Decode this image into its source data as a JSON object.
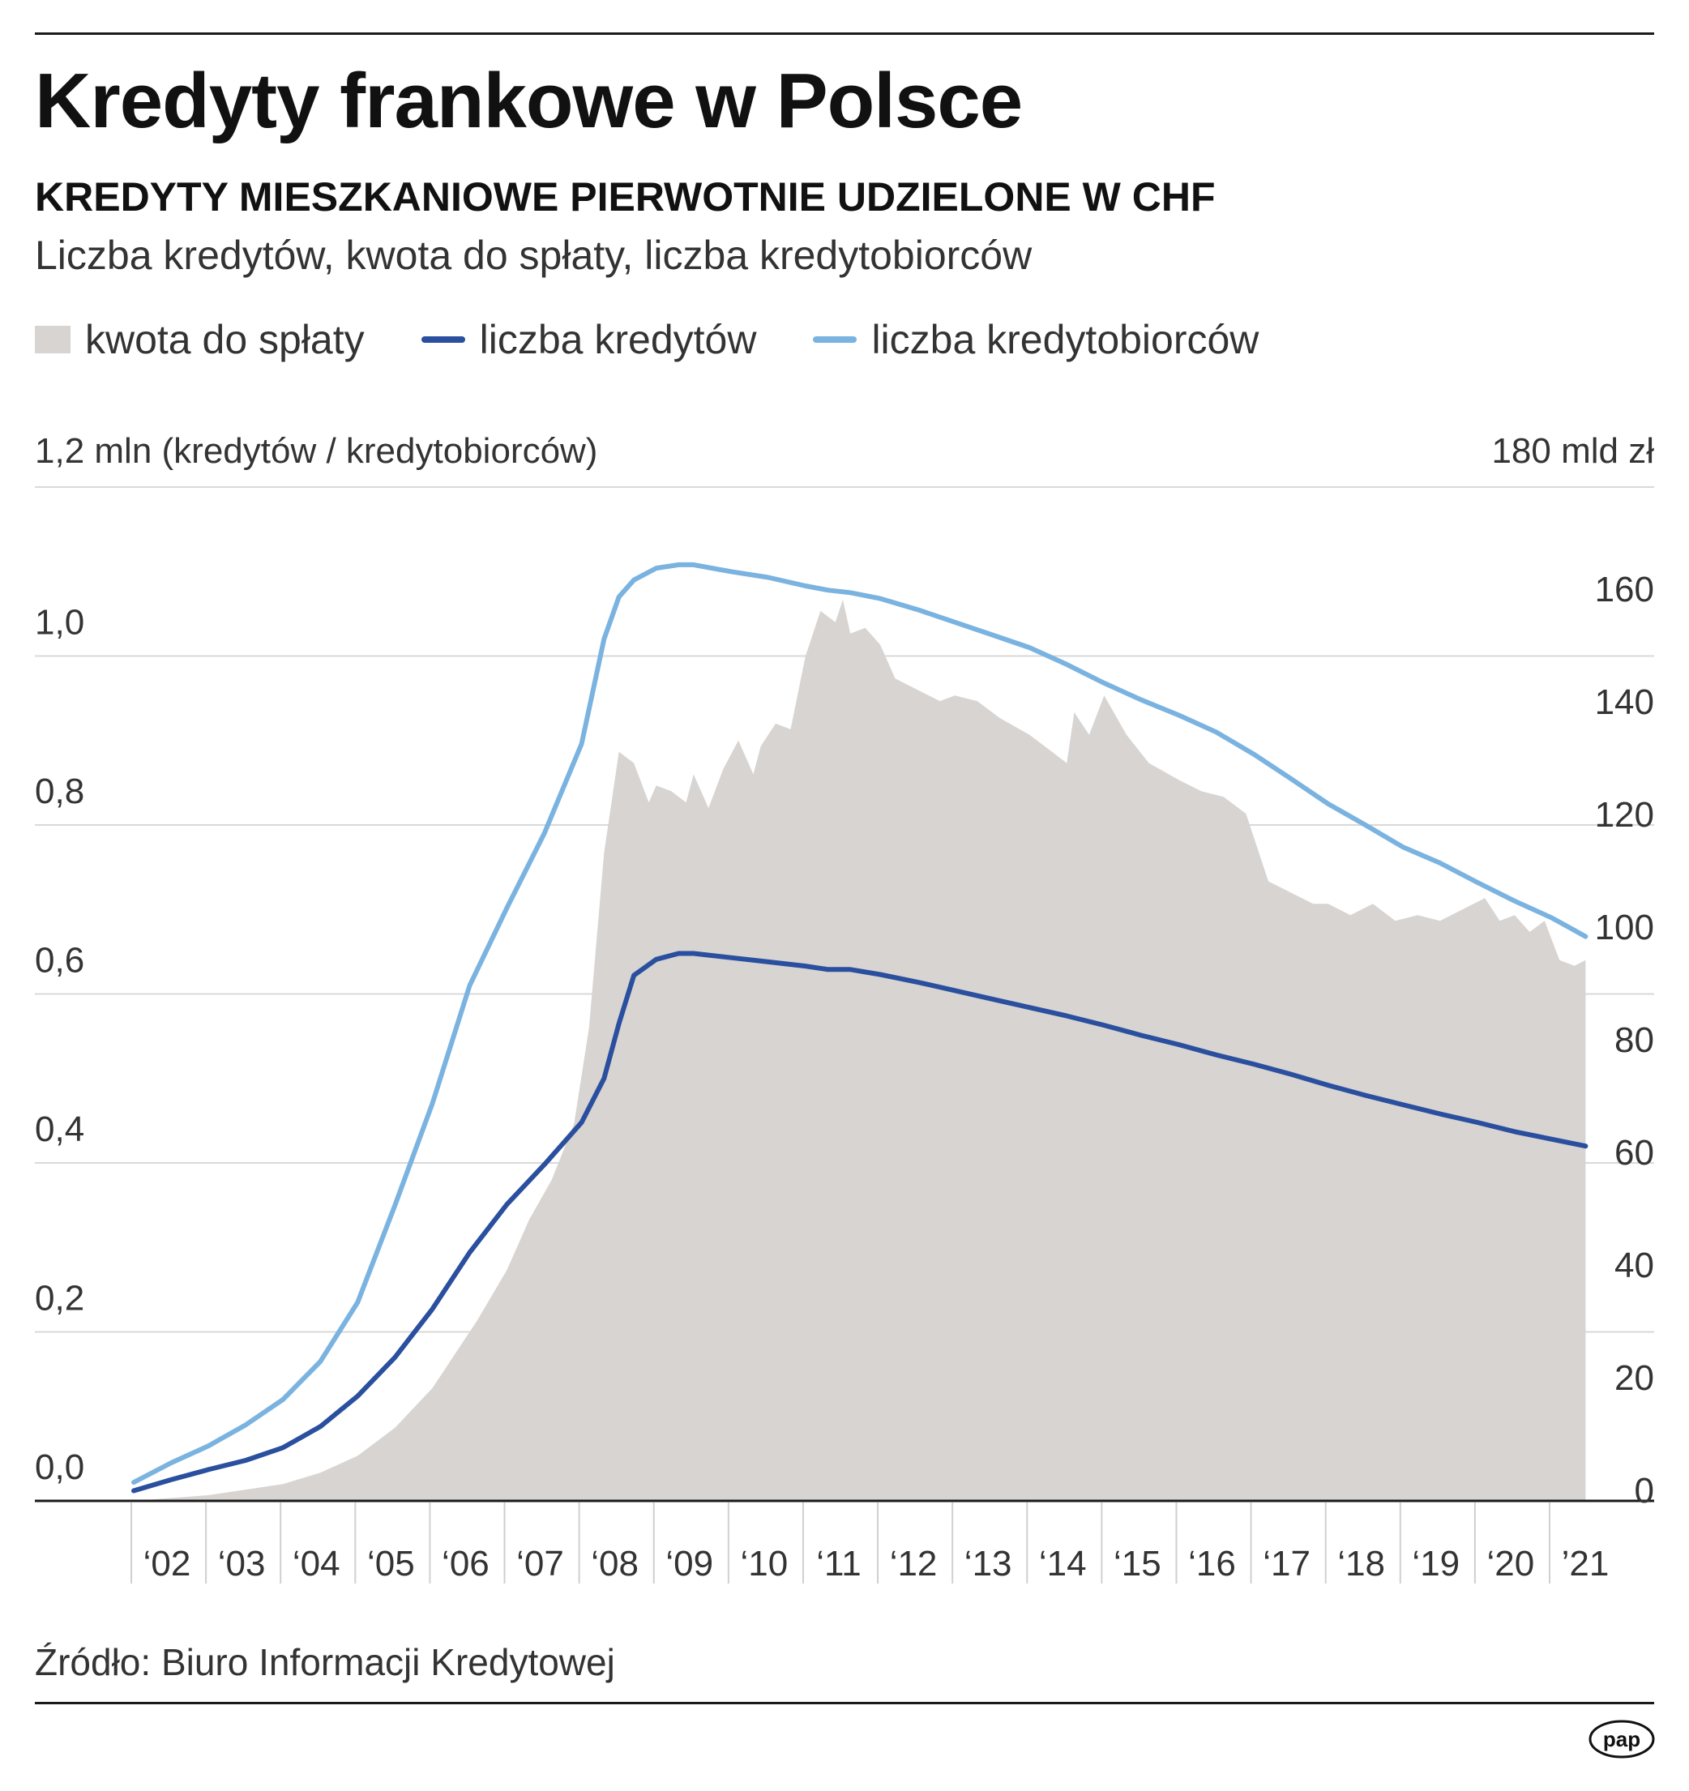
{
  "header": {
    "title": "Kredyty frankowe w Polsce",
    "subtitle": "KREDYTY MIESZKANIOWE PIERWOTNIE UDZIELONE W CHF",
    "description": "Liczba kredytów, kwota do spłaty, liczba kredytobiorców"
  },
  "legend": {
    "amount": "kwota do spłaty",
    "loans": "liczba kredytów",
    "borrowers": "liczba kredytobiorców"
  },
  "axes": {
    "left_label": "1,2 mln (kredytów / kredytobiorców)",
    "right_label": "180 mld zł"
  },
  "footer": {
    "source": "Źródło: Biuro Informacji Kredytowej",
    "logo": "pap"
  },
  "colors": {
    "amount_fill": "#d7d4d2",
    "loans_line": "#2a4f9e",
    "borrowers_line": "#7ab3e0",
    "grid": "#d9d9d9"
  },
  "chart_data": {
    "type": "area",
    "y_left_range": [
      0,
      1.2
    ],
    "y_right_range": [
      0,
      180
    ],
    "x_range": [
      2001.5,
      2021.5
    ],
    "y_left_ticks": [
      "0,0",
      "0,2",
      "0,4",
      "0,6",
      "0,8",
      "1,0"
    ],
    "y_left_tick_values": [
      0,
      0.2,
      0.4,
      0.6,
      0.8,
      1.0
    ],
    "y_right_ticks": [
      "0",
      "20",
      "40",
      "60",
      "80",
      "100",
      "120",
      "140",
      "160"
    ],
    "y_right_tick_values": [
      0,
      20,
      40,
      60,
      80,
      100,
      120,
      140,
      160
    ],
    "x_ticks": [
      "‘02",
      "‘03",
      "‘04",
      "‘05",
      "‘06",
      "‘07",
      "‘08",
      "‘09",
      "‘10",
      "‘11",
      "‘12",
      "‘13",
      "‘14",
      "‘15",
      "‘16",
      "‘17",
      "‘18",
      "‘19",
      "‘20",
      "’21"
    ],
    "grid": true,
    "series": [
      {
        "name": "kwota do spłaty",
        "axis": "right",
        "type": "area",
        "x": [
          2002.0,
          2002.5,
          2003.0,
          2003.5,
          2004.0,
          2004.5,
          2005.0,
          2005.5,
          2006.0,
          2006.3,
          2006.6,
          2007.0,
          2007.3,
          2007.6,
          2007.9,
          2008.1,
          2008.3,
          2008.5,
          2008.7,
          2008.9,
          2009.0,
          2009.2,
          2009.4,
          2009.5,
          2009.7,
          2009.9,
          2010.1,
          2010.3,
          2010.4,
          2010.6,
          2010.8,
          2011.0,
          2011.2,
          2011.4,
          2011.5,
          2011.6,
          2011.8,
          2012.0,
          2012.2,
          2012.5,
          2012.8,
          2013.0,
          2013.3,
          2013.6,
          2014.0,
          2014.3,
          2014.5,
          2014.6,
          2014.8,
          2015.0,
          2015.3,
          2015.6,
          2016.0,
          2016.3,
          2016.6,
          2016.9,
          2017.2,
          2017.5,
          2017.8,
          2018.0,
          2018.3,
          2018.6,
          2018.9,
          2019.2,
          2019.5,
          2019.8,
          2020.1,
          2020.3,
          2020.5,
          2020.7,
          2020.9,
          2021.1,
          2021.3,
          2021.45
        ],
        "values": [
          0,
          0.5,
          1,
          2,
          3,
          5,
          8,
          13,
          20,
          26,
          32,
          41,
          50,
          57,
          67,
          84,
          115,
          133,
          131,
          124,
          127,
          126,
          124,
          129,
          123,
          130,
          135,
          129,
          134,
          138,
          137,
          150,
          158,
          156,
          160,
          154,
          155,
          152,
          146,
          144,
          142,
          143,
          142,
          139,
          136,
          133,
          131,
          140,
          136,
          143,
          136,
          131,
          128,
          126,
          125,
          122,
          110,
          108,
          106,
          106,
          104,
          106,
          103,
          104,
          103,
          105,
          107,
          103,
          104,
          101,
          103,
          96,
          95,
          96
        ]
      },
      {
        "name": "liczba kredytów",
        "axis": "left",
        "type": "line",
        "x": [
          2002.0,
          2002.5,
          2003.0,
          2003.5,
          2004.0,
          2004.5,
          2005.0,
          2005.5,
          2006.0,
          2006.5,
          2007.0,
          2007.5,
          2008.0,
          2008.3,
          2008.5,
          2008.7,
          2009.0,
          2009.3,
          2009.5,
          2010.0,
          2010.5,
          2011.0,
          2011.3,
          2011.6,
          2012.0,
          2012.5,
          2013.0,
          2013.5,
          2014.0,
          2014.5,
          2015.0,
          2015.5,
          2016.0,
          2016.5,
          2017.0,
          2017.5,
          2018.0,
          2018.5,
          2019.0,
          2019.5,
          2020.0,
          2020.5,
          2021.0,
          2021.45
        ],
        "values": [
          0.012,
          0.025,
          0.037,
          0.048,
          0.063,
          0.088,
          0.124,
          0.17,
          0.227,
          0.294,
          0.351,
          0.398,
          0.448,
          0.5,
          0.565,
          0.622,
          0.641,
          0.648,
          0.648,
          0.643,
          0.638,
          0.633,
          0.629,
          0.629,
          0.623,
          0.614,
          0.604,
          0.594,
          0.584,
          0.574,
          0.563,
          0.551,
          0.54,
          0.528,
          0.517,
          0.505,
          0.492,
          0.48,
          0.469,
          0.458,
          0.448,
          0.437,
          0.428,
          0.42
        ]
      },
      {
        "name": "liczba kredytobiorców",
        "axis": "left",
        "type": "line",
        "x": [
          2002.0,
          2002.5,
          2003.0,
          2003.5,
          2004.0,
          2004.5,
          2005.0,
          2005.5,
          2006.0,
          2006.5,
          2007.0,
          2007.5,
          2008.0,
          2008.3,
          2008.5,
          2008.7,
          2009.0,
          2009.3,
          2009.5,
          2010.0,
          2010.5,
          2011.0,
          2011.3,
          2011.6,
          2012.0,
          2012.5,
          2013.0,
          2013.5,
          2014.0,
          2014.5,
          2015.0,
          2015.5,
          2016.0,
          2016.5,
          2017.0,
          2017.5,
          2018.0,
          2018.5,
          2019.0,
          2019.5,
          2020.0,
          2020.5,
          2021.0,
          2021.45
        ],
        "values": [
          0.022,
          0.045,
          0.065,
          0.09,
          0.12,
          0.165,
          0.235,
          0.35,
          0.47,
          0.61,
          0.702,
          0.79,
          0.896,
          1.02,
          1.07,
          1.09,
          1.104,
          1.108,
          1.108,
          1.1,
          1.093,
          1.083,
          1.078,
          1.075,
          1.068,
          1.055,
          1.04,
          1.025,
          1.01,
          0.99,
          0.968,
          0.948,
          0.93,
          0.91,
          0.884,
          0.855,
          0.825,
          0.8,
          0.774,
          0.755,
          0.732,
          0.71,
          0.69,
          0.668
        ]
      }
    ]
  }
}
